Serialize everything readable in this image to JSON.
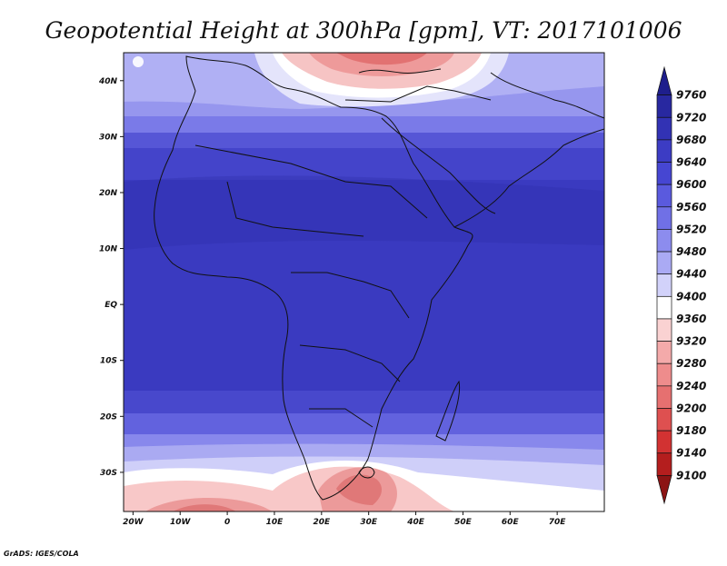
{
  "title": "Geopotential Height at 300hPa [gpm], VT: 2017101006",
  "footer": "GrADS: IGES/COLA",
  "map": {
    "lon_range": [
      -22,
      80
    ],
    "lat_range": [
      -37,
      45
    ],
    "lon_ticks": [
      {
        "value": -20,
        "label": "20W"
      },
      {
        "value": -10,
        "label": "10W"
      },
      {
        "value": 0,
        "label": "0"
      },
      {
        "value": 10,
        "label": "10E"
      },
      {
        "value": 20,
        "label": "20E"
      },
      {
        "value": 30,
        "label": "30E"
      },
      {
        "value": 40,
        "label": "40E"
      },
      {
        "value": 50,
        "label": "50E"
      },
      {
        "value": 60,
        "label": "60E"
      },
      {
        "value": 70,
        "label": "70E"
      }
    ],
    "lat_ticks": [
      {
        "value": 40,
        "label": "40N"
      },
      {
        "value": 30,
        "label": "30N"
      },
      {
        "value": 20,
        "label": "20N"
      },
      {
        "value": 10,
        "label": "10N"
      },
      {
        "value": 0,
        "label": "EQ"
      },
      {
        "value": -10,
        "label": "10S"
      },
      {
        "value": -20,
        "label": "20S"
      },
      {
        "value": -30,
        "label": "30S"
      }
    ]
  },
  "colorbar": {
    "labels": [
      "9760",
      "9720",
      "9680",
      "9640",
      "9600",
      "9560",
      "9520",
      "9480",
      "9440",
      "9400",
      "9360",
      "9320",
      "9280",
      "9240",
      "9200",
      "9180",
      "9140",
      "9100"
    ],
    "colors": [
      "#1e1e8c",
      "#2828a0",
      "#3232b4",
      "#3c3cc4",
      "#4646d2",
      "#5a5ade",
      "#7070e6",
      "#8c8cee",
      "#aaaaf4",
      "#d2d2fa",
      "#ffffff",
      "#fad2d2",
      "#f4aaaa",
      "#ee8c8c",
      "#e67070",
      "#de5050",
      "#d23232",
      "#b41e1e",
      "#8c1414"
    ]
  }
}
